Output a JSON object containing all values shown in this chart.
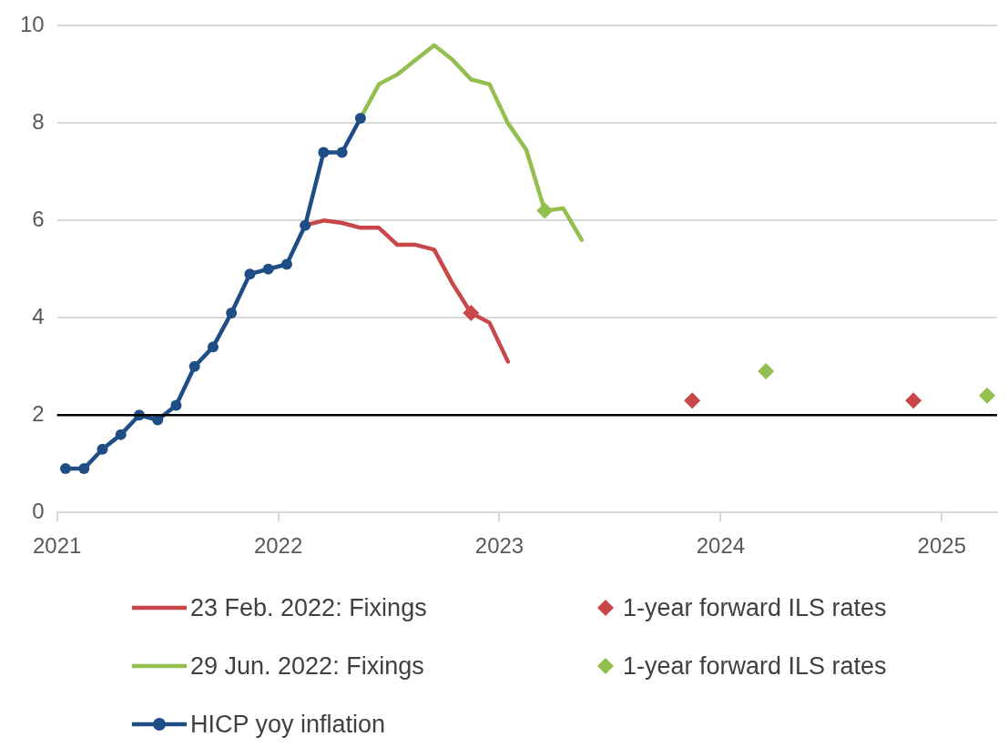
{
  "chart_data": {
    "type": "line",
    "xlim": [
      "2021-01-01",
      "2025-04-01"
    ],
    "xticks": [
      {
        "value": "2021-01-01",
        "label": "2021"
      },
      {
        "value": "2022-01-01",
        "label": "2022"
      },
      {
        "value": "2023-01-01",
        "label": "2023"
      },
      {
        "value": "2024-01-01",
        "label": "2024"
      },
      {
        "value": "2025-01-01",
        "label": "2025"
      }
    ],
    "ylim": [
      0,
      10
    ],
    "yticks": [
      0,
      2,
      4,
      6,
      8,
      10
    ],
    "grid": "y",
    "legend": "bottom",
    "ref_lines": [
      {
        "axis": "y",
        "value": 2,
        "color": "#000000"
      }
    ],
    "series": [
      {
        "name": "23 Feb. 2022: Fixings",
        "marker": "none",
        "color": "#c8484a",
        "x": [
          "2022-02-15",
          "2022-03-15",
          "2022-04-15",
          "2022-05-15",
          "2022-06-15",
          "2022-07-15",
          "2022-08-15",
          "2022-09-15",
          "2022-10-15",
          "2022-11-15",
          "2022-12-15",
          "2023-01-15"
        ],
        "values": [
          5.9,
          6.0,
          5.95,
          5.85,
          5.85,
          5.5,
          5.5,
          5.4,
          4.7,
          4.1,
          3.9,
          3.1
        ]
      },
      {
        "name": "1-year forward ILS rates",
        "type": "scatter",
        "marker": "diamond",
        "color": "#c8484a",
        "x": [
          "2022-11-15",
          "2023-11-15",
          "2024-11-15"
        ],
        "values": [
          4.1,
          2.3,
          2.3
        ]
      },
      {
        "name": "29 Jun. 2022: Fixings",
        "marker": "none",
        "color": "#93bf4f",
        "x": [
          "2022-05-15",
          "2022-06-15",
          "2022-07-15",
          "2022-08-15",
          "2022-09-15",
          "2022-10-15",
          "2022-11-15",
          "2022-12-15",
          "2023-01-15",
          "2023-02-15",
          "2023-03-15",
          "2023-04-15",
          "2023-05-15"
        ],
        "values": [
          8.1,
          8.8,
          9.0,
          9.3,
          9.6,
          9.3,
          8.9,
          8.8,
          8.0,
          7.45,
          6.2,
          6.25,
          5.6
        ]
      },
      {
        "name": "1-year forward ILS rates",
        "type": "scatter",
        "marker": "diamond",
        "color": "#93bf4f",
        "x": [
          "2023-03-15",
          "2024-03-15",
          "2025-03-15"
        ],
        "values": [
          6.2,
          2.9,
          2.4
        ]
      },
      {
        "name": "HICP yoy inflation",
        "marker": "circle",
        "color": "#1f4e87",
        "x": [
          "2021-01-15",
          "2021-02-15",
          "2021-03-15",
          "2021-04-15",
          "2021-05-15",
          "2021-06-15",
          "2021-07-15",
          "2021-08-15",
          "2021-09-15",
          "2021-10-15",
          "2021-11-15",
          "2021-12-15",
          "2022-01-15",
          "2022-02-15",
          "2022-03-15",
          "2022-04-15",
          "2022-05-15"
        ],
        "values": [
          0.9,
          0.9,
          1.3,
          1.6,
          2.0,
          1.9,
          2.2,
          3.0,
          3.4,
          4.1,
          4.9,
          5.0,
          5.1,
          5.9,
          7.4,
          7.4,
          8.1
        ]
      }
    ]
  }
}
